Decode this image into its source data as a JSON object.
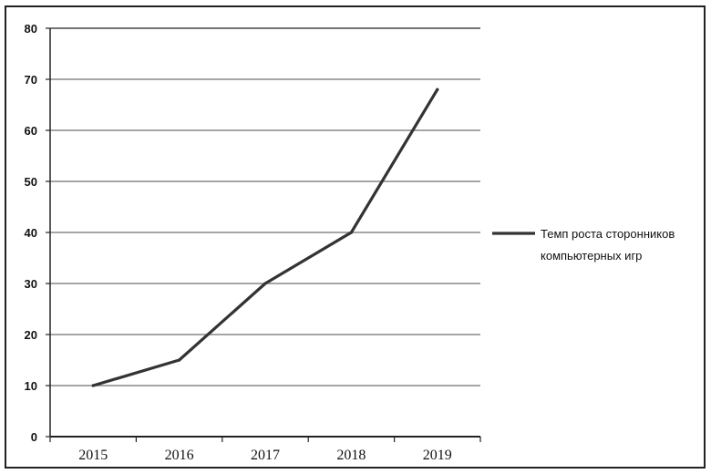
{
  "chart_data": {
    "type": "line",
    "categories": [
      "2015",
      "2016",
      "2017",
      "2018",
      "2019"
    ],
    "series": [
      {
        "name": "Темп роста сторонников компьютерных игр",
        "name_lines": [
          "Темп роста сторонников",
          "компьютерных игр"
        ],
        "values": [
          10,
          15,
          30,
          40,
          68
        ],
        "color": "#333333"
      }
    ],
    "yticks": [
      "0",
      "10",
      "20",
      "30",
      "40",
      "50",
      "60",
      "70",
      "80"
    ],
    "ylim": [
      0,
      80
    ],
    "grid": true,
    "legend": "right",
    "title": "",
    "xlabel": "",
    "ylabel": ""
  }
}
